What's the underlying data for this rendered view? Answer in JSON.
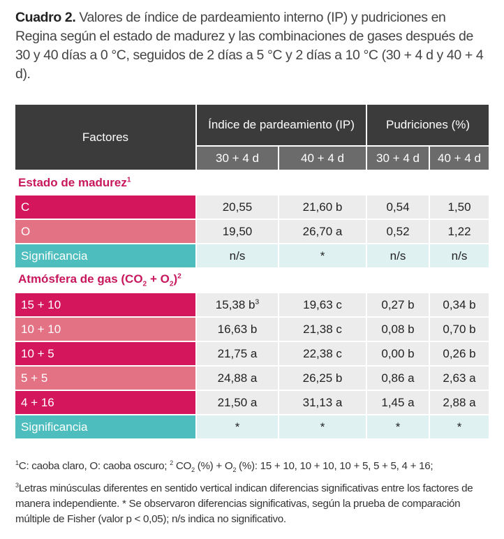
{
  "caption": {
    "label": "Cuadro 2.",
    "text": "Valores de índice de pardeamiento interno (IP) y pudriciones en Regina según el estado de madurez y las combinaciones de gases después de 30 y 40 días a 0 °C, seguidos de 2 días a 5 °C y 2 días a 10 °C (30 + 4 d y 40 + 4 d)."
  },
  "table": {
    "header": {
      "factors": "Factores",
      "groups": [
        "Índice de pardeamiento (IP)",
        "Pudriciones (%)"
      ],
      "columns": [
        "30 + 4 d",
        "40 + 4 d",
        "30 + 4 d",
        "40 + 4 d"
      ]
    },
    "sections": [
      {
        "title": [
          "Estado de madurez",
          "1"
        ],
        "rows": [
          {
            "factor": "C",
            "cells": [
              "20,55",
              "21,60 b",
              "0,54",
              "1,50"
            ]
          },
          {
            "factor": "O",
            "cells": [
              "19,50",
              "26,70 a",
              "0,52",
              "1,22"
            ]
          },
          {
            "factor": "Significancia",
            "cells": [
              "n/s",
              "*",
              "n/s",
              "n/s"
            ]
          }
        ]
      },
      {
        "title": [
          "Atmósfera de gas (CO",
          "2",
          " + O",
          "2",
          ")",
          "2"
        ],
        "rows": [
          {
            "factor": "15 + 10",
            "cells": [
              [
                "15,38 b",
                "3"
              ],
              "19,63 c",
              "0,27 b",
              "0,34 b"
            ]
          },
          {
            "factor": "10 + 10",
            "cells": [
              "16,63 b",
              "21,38 c",
              "0,08 b",
              "0,70 b"
            ]
          },
          {
            "factor": "10 + 5",
            "cells": [
              "21,75 a",
              "22,38 c",
              "0,00 b",
              "0,26 b"
            ]
          },
          {
            "factor": "5 + 5",
            "cells": [
              "24,88 a",
              "26,25 b",
              "0,86 a",
              "2,63 a"
            ]
          },
          {
            "factor": "4 + 16",
            "cells": [
              "21,50 a",
              "31,13 a",
              "1,45 a",
              "2,88 a"
            ]
          },
          {
            "factor": "Significancia",
            "cells": [
              "*",
              "*",
              "*",
              "*"
            ]
          }
        ]
      }
    ]
  },
  "footnotes": [
    [
      "1",
      "C: caoba claro, O: caoba oscuro; ",
      "2",
      " CO",
      "2",
      " (%) + O",
      "2",
      " (%): 15 + 10, 10 + 10, 10 + 5, 5 + 5, 4 + 16;"
    ],
    [
      "3",
      "Letras minúsculas diferentes en sentido vertical indican diferencias significativas entre los factores de manera independiente. * Se observaron diferencias significativas, según la prueba de comparación múltiple de Fisher (valor p < 0,05); n/s indica no significativo."
    ]
  ]
}
